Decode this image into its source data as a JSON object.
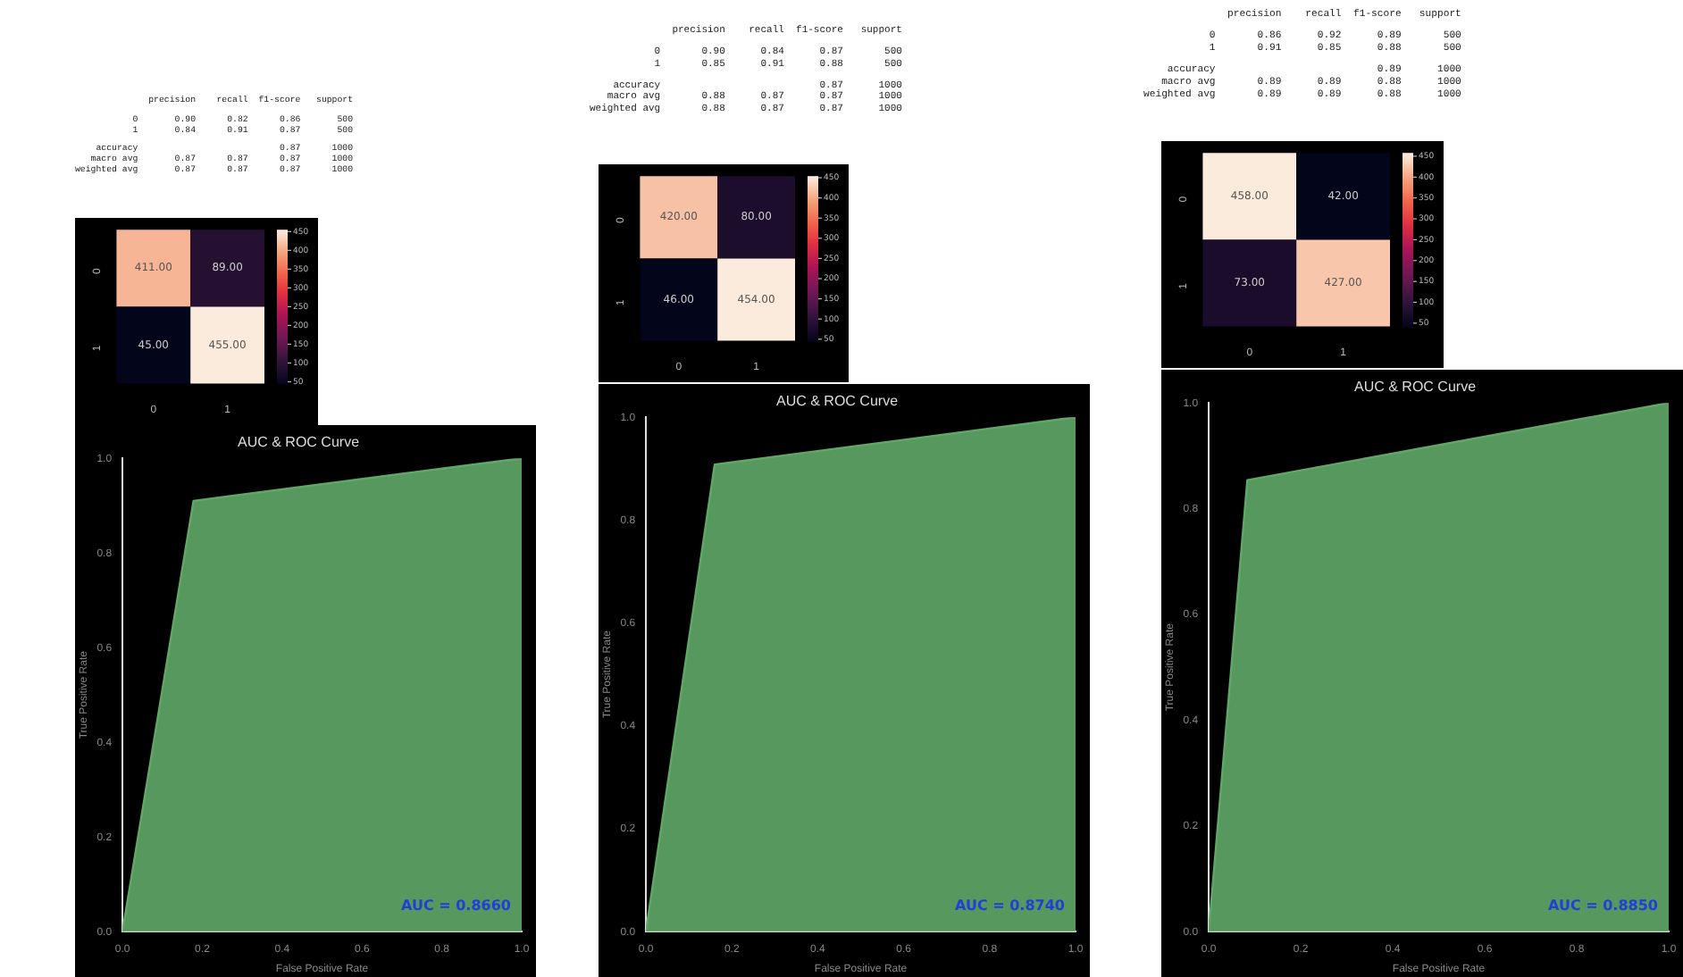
{
  "chart_data": [
    {
      "type": "other",
      "annotations": [
        "              precision    recall  f1-score   support",
        "           0       0.90      0.82      0.86       500",
        "           1       0.84      0.91      0.87       500",
        "    accuracy                           0.87      1000",
        "   macro avg       0.87      0.87      0.87      1000",
        "weighted avg       0.87      0.87      0.87      1000"
      ]
    },
    {
      "type": "heatmap",
      "categories": [
        "0",
        "1"
      ],
      "y_categories": [
        "0",
        "1"
      ],
      "cells": [
        [
          411,
          89
        ],
        [
          45,
          455
        ]
      ],
      "cell_labels": [
        [
          "411.00",
          "89.00"
        ],
        [
          "45.00",
          "455.00"
        ]
      ],
      "clim": [
        45,
        455
      ],
      "cticks": [
        50,
        100,
        150,
        200,
        250,
        300,
        350,
        400,
        450
      ]
    },
    {
      "type": "area",
      "title": "AUC & ROC Curve",
      "xlabel": "False Positive Rate",
      "ylabel": "True Positive Rate",
      "x": [
        0,
        0.178,
        1
      ],
      "values": [
        0,
        0.91,
        1
      ],
      "color": "#5fa868",
      "xlim": [
        0,
        1
      ],
      "ylim": [
        0,
        1
      ],
      "xticks": [
        {
          "value": 0,
          "label": "0.0"
        },
        {
          "value": 0.2,
          "label": "0.2"
        },
        {
          "value": 0.4,
          "label": "0.4"
        },
        {
          "value": 0.6,
          "label": "0.6"
        },
        {
          "value": 0.8,
          "label": "0.8"
        },
        {
          "value": 1,
          "label": "1.0"
        }
      ],
      "yticks": [
        {
          "value": 0,
          "label": "0.0"
        },
        {
          "value": 0.2,
          "label": "0.2"
        },
        {
          "value": 0.4,
          "label": "0.4"
        },
        {
          "value": 0.6,
          "label": "0.6"
        },
        {
          "value": 0.8,
          "label": "0.8"
        },
        {
          "value": 1,
          "label": "1.0"
        }
      ],
      "annotations": [
        "AUC = 0.8660"
      ]
    },
    {
      "type": "other",
      "annotations": [
        "              precision    recall  f1-score   support",
        "           0       0.90      0.84      0.87       500",
        "           1       0.85      0.91      0.88       500",
        "    accuracy                           0.87      1000",
        "   macro avg       0.88      0.87      0.87      1000",
        "weighted avg       0.88      0.87      0.87      1000"
      ]
    },
    {
      "type": "heatmap",
      "categories": [
        "0",
        "1"
      ],
      "y_categories": [
        "0",
        "1"
      ],
      "cells": [
        [
          420,
          80
        ],
        [
          46,
          454
        ]
      ],
      "cell_labels": [
        [
          "420.00",
          "80.00"
        ],
        [
          "46.00",
          "454.00"
        ]
      ],
      "clim": [
        46,
        454
      ],
      "cticks": [
        50,
        100,
        150,
        200,
        250,
        300,
        350,
        400,
        450
      ]
    },
    {
      "type": "area",
      "title": "AUC & ROC Curve",
      "xlabel": "False Positive Rate",
      "ylabel": "True Positive Rate",
      "x": [
        0,
        0.16,
        1
      ],
      "values": [
        0,
        0.908,
        1
      ],
      "color": "#5fa868",
      "xlim": [
        0,
        1
      ],
      "ylim": [
        0,
        1
      ],
      "xticks": [
        {
          "value": 0,
          "label": "0.0"
        },
        {
          "value": 0.2,
          "label": "0.2"
        },
        {
          "value": 0.4,
          "label": "0.4"
        },
        {
          "value": 0.6,
          "label": "0.6"
        },
        {
          "value": 0.8,
          "label": "0.8"
        },
        {
          "value": 1,
          "label": "1.0"
        }
      ],
      "yticks": [
        {
          "value": 0,
          "label": "0.0"
        },
        {
          "value": 0.2,
          "label": "0.2"
        },
        {
          "value": 0.4,
          "label": "0.4"
        },
        {
          "value": 0.6,
          "label": "0.6"
        },
        {
          "value": 0.8,
          "label": "0.8"
        },
        {
          "value": 1,
          "label": "1.0"
        }
      ],
      "annotations": [
        "AUC = 0.8740"
      ]
    },
    {
      "type": "other",
      "annotations": [
        "              precision    recall  f1-score   support",
        "           0       0.86      0.92      0.89       500",
        "           1       0.91      0.85      0.88       500",
        "    accuracy                           0.89      1000",
        "   macro avg       0.89      0.89      0.88      1000",
        "weighted avg       0.89      0.89      0.88      1000"
      ]
    },
    {
      "type": "heatmap",
      "categories": [
        "0",
        "1"
      ],
      "y_categories": [
        "0",
        "1"
      ],
      "cells": [
        [
          458,
          42
        ],
        [
          73,
          427
        ]
      ],
      "cell_labels": [
        [
          "458.00",
          "42.00"
        ],
        [
          "73.00",
          "427.00"
        ]
      ],
      "clim": [
        42,
        458
      ],
      "cticks": [
        50,
        100,
        150,
        200,
        250,
        300,
        350,
        400,
        450
      ]
    },
    {
      "type": "area",
      "title": "AUC & ROC Curve",
      "xlabel": "False Positive Rate",
      "ylabel": "True Positive Rate",
      "x": [
        0,
        0.084,
        1
      ],
      "values": [
        0,
        0.854,
        1
      ],
      "color": "#5fa868",
      "xlim": [
        0,
        1
      ],
      "ylim": [
        0,
        1
      ],
      "xticks": [
        {
          "value": 0,
          "label": "0.0"
        },
        {
          "value": 0.2,
          "label": "0.2"
        },
        {
          "value": 0.4,
          "label": "0.4"
        },
        {
          "value": 0.6,
          "label": "0.6"
        },
        {
          "value": 0.8,
          "label": "0.8"
        },
        {
          "value": 1,
          "label": "1.0"
        }
      ],
      "yticks": [
        {
          "value": 0,
          "label": "0.0"
        },
        {
          "value": 0.2,
          "label": "0.2"
        },
        {
          "value": 0.4,
          "label": "0.4"
        },
        {
          "value": 0.6,
          "label": "0.6"
        },
        {
          "value": 0.8,
          "label": "0.8"
        },
        {
          "value": 1,
          "label": "1.0"
        }
      ],
      "annotations": [
        "AUC = 0.8850"
      ]
    }
  ]
}
